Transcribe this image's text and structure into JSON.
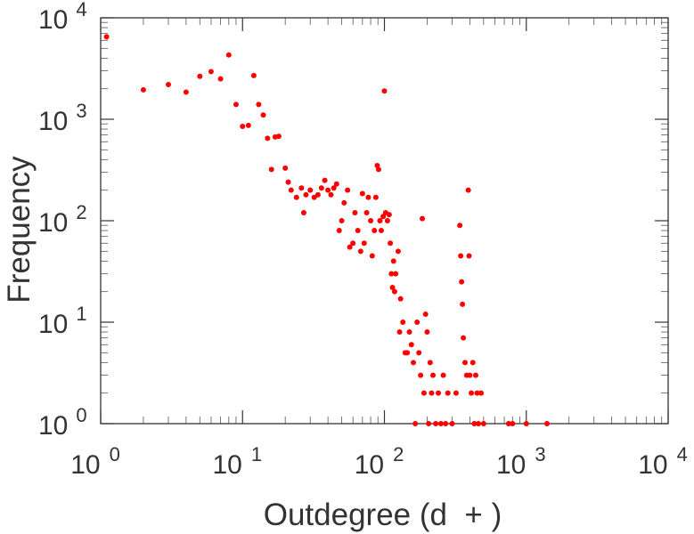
{
  "chart_data": {
    "type": "scatter",
    "title": "",
    "xlabel": "Outdegree (d  + )",
    "ylabel": "Frequency",
    "x_scale": "log",
    "y_scale": "log",
    "xlim": [
      1,
      10000
    ],
    "ylim": [
      1,
      10000
    ],
    "x_ticks": [
      {
        "base": "10",
        "exp": "0",
        "value": 1
      },
      {
        "base": "10",
        "exp": "1",
        "value": 10
      },
      {
        "base": "10",
        "exp": "2",
        "value": 100
      },
      {
        "base": "10",
        "exp": "3",
        "value": 1000
      },
      {
        "base": "10",
        "exp": "4",
        "value": 10000
      }
    ],
    "y_ticks": [
      {
        "base": "10",
        "exp": "0",
        "value": 1
      },
      {
        "base": "10",
        "exp": "1",
        "value": 10
      },
      {
        "base": "10",
        "exp": "2",
        "value": 100
      },
      {
        "base": "10",
        "exp": "3",
        "value": 1000
      },
      {
        "base": "10",
        "exp": "4",
        "value": 10000
      }
    ],
    "grid": false,
    "legend": "none",
    "marker_color": "#ff0000",
    "points": [
      [
        1.1,
        6500
      ],
      [
        2,
        1950
      ],
      [
        3,
        2200
      ],
      [
        4,
        1850
      ],
      [
        5,
        2650
      ],
      [
        6,
        2950
      ],
      [
        7,
        2500
      ],
      [
        8,
        4300
      ],
      [
        9,
        1400
      ],
      [
        10,
        850
      ],
      [
        11,
        870
      ],
      [
        12,
        2700
      ],
      [
        13,
        1400
      ],
      [
        14,
        1100
      ],
      [
        15,
        650
      ],
      [
        17,
        670
      ],
      [
        18,
        680
      ],
      [
        16,
        320
      ],
      [
        20,
        330
      ],
      [
        21,
        240
      ],
      [
        22,
        200
      ],
      [
        24,
        170
      ],
      [
        26,
        210
      ],
      [
        27,
        120
      ],
      [
        28,
        180
      ],
      [
        30,
        200
      ],
      [
        32,
        170
      ],
      [
        34,
        180
      ],
      [
        36,
        210
      ],
      [
        38,
        250
      ],
      [
        40,
        200
      ],
      [
        42,
        180
      ],
      [
        44,
        210
      ],
      [
        46,
        230
      ],
      [
        48,
        80
      ],
      [
        50,
        100
      ],
      [
        52,
        150
      ],
      [
        55,
        200
      ],
      [
        57,
        55
      ],
      [
        60,
        60
      ],
      [
        62,
        120
      ],
      [
        65,
        80
      ],
      [
        68,
        50
      ],
      [
        70,
        185
      ],
      [
        72,
        60
      ],
      [
        75,
        120
      ],
      [
        77,
        170
      ],
      [
        80,
        100
      ],
      [
        82,
        45
      ],
      [
        85,
        80
      ],
      [
        87,
        170
      ],
      [
        89,
        350
      ],
      [
        91,
        320
      ],
      [
        93,
        100
      ],
      [
        95,
        80
      ],
      [
        98,
        110
      ],
      [
        100,
        1900
      ],
      [
        102,
        120
      ],
      [
        105,
        100
      ],
      [
        108,
        115
      ],
      [
        110,
        60
      ],
      [
        112,
        30
      ],
      [
        114,
        22
      ],
      [
        116,
        40
      ],
      [
        118,
        20
      ],
      [
        120,
        30
      ],
      [
        125,
        50
      ],
      [
        128,
        8
      ],
      [
        130,
        17
      ],
      [
        135,
        10
      ],
      [
        140,
        5
      ],
      [
        145,
        5
      ],
      [
        150,
        8
      ],
      [
        155,
        6
      ],
      [
        160,
        4
      ],
      [
        165,
        1
      ],
      [
        170,
        10
      ],
      [
        175,
        5
      ],
      [
        180,
        3
      ],
      [
        185,
        105
      ],
      [
        190,
        2
      ],
      [
        195,
        12
      ],
      [
        200,
        8
      ],
      [
        205,
        1
      ],
      [
        210,
        4
      ],
      [
        215,
        2
      ],
      [
        220,
        3
      ],
      [
        230,
        1
      ],
      [
        240,
        2
      ],
      [
        250,
        1
      ],
      [
        260,
        3
      ],
      [
        270,
        1
      ],
      [
        280,
        2
      ],
      [
        300,
        1
      ],
      [
        320,
        2
      ],
      [
        340,
        90
      ],
      [
        345,
        45
      ],
      [
        350,
        25
      ],
      [
        355,
        15
      ],
      [
        360,
        7
      ],
      [
        370,
        4
      ],
      [
        380,
        3
      ],
      [
        390,
        200
      ],
      [
        395,
        45
      ],
      [
        400,
        3
      ],
      [
        410,
        2
      ],
      [
        420,
        4
      ],
      [
        430,
        1
      ],
      [
        440,
        3
      ],
      [
        450,
        2
      ],
      [
        460,
        1
      ],
      [
        480,
        2
      ],
      [
        500,
        1
      ],
      [
        750,
        1
      ],
      [
        800,
        1
      ],
      [
        1000,
        1
      ],
      [
        1400,
        1
      ]
    ]
  }
}
